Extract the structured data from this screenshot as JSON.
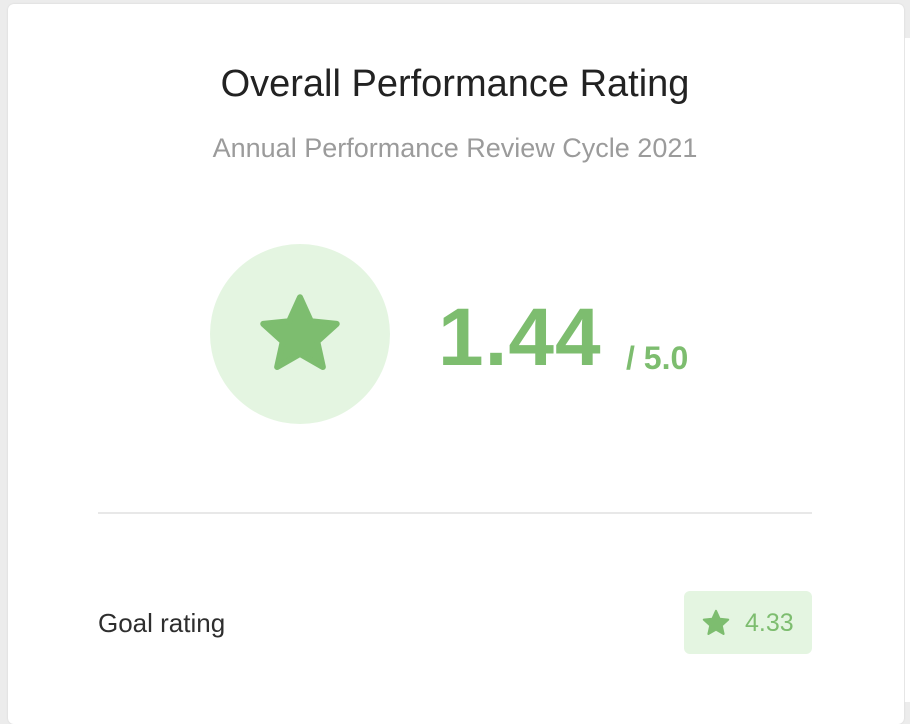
{
  "header": {
    "title": "Overall Performance Rating",
    "subtitle": "Annual Performance Review Cycle 2021"
  },
  "overall": {
    "score": "1.44",
    "max_label": "/ 5.0",
    "icon": "star-icon"
  },
  "rows": [
    {
      "label": "Goal rating",
      "value": "4.33",
      "icon": "star-icon"
    }
  ],
  "colors": {
    "accent": "#7dbd6f",
    "accent_bg": "#e4f5e1",
    "title_text": "#222222",
    "subtitle_text": "#9b9b9b",
    "divider": "#e8e8e8"
  }
}
